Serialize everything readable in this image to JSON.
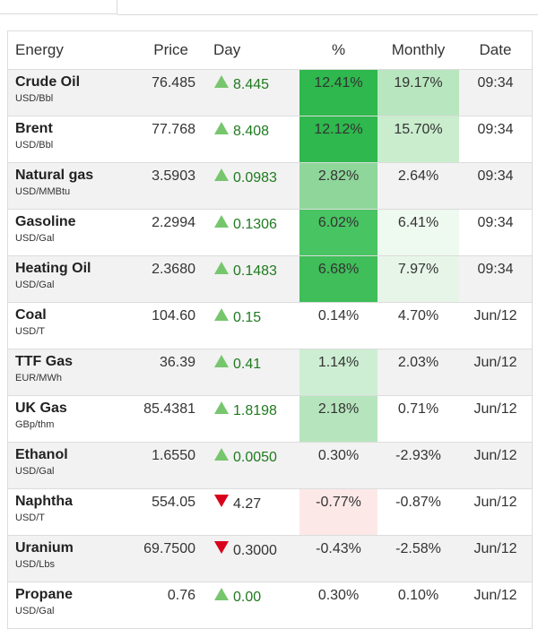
{
  "colors": {
    "up_arrow": "#77c66e",
    "down_arrow": "#d9001b",
    "up_text": "#1f7a1f"
  },
  "header": {
    "name": "Energy",
    "price": "Price",
    "day": "Day",
    "pct": "%",
    "monthly": "Monthly",
    "date": "Date"
  },
  "rows": [
    {
      "name": "Crude Oil",
      "unit": "USD/Bbl",
      "price": "76.485",
      "day": "8.445",
      "dir": "up",
      "pct": "12.41%",
      "pct_bg": "#2eb84d",
      "monthly": "19.17%",
      "monthly_bg": "#b8e6be",
      "date": "09:34"
    },
    {
      "name": "Brent",
      "unit": "USD/Bbl",
      "price": "77.768",
      "day": "8.408",
      "dir": "up",
      "pct": "12.12%",
      "pct_bg": "#2eb84d",
      "monthly": "15.70%",
      "monthly_bg": "#c9edcd",
      "date": "09:34"
    },
    {
      "name": "Natural gas",
      "unit": "USD/MMBtu",
      "price": "3.5903",
      "day": "0.0983",
      "dir": "up",
      "pct": "2.82%",
      "pct_bg": "#8fd69b",
      "monthly": "2.64%",
      "monthly_bg": "",
      "date": "09:34"
    },
    {
      "name": "Gasoline",
      "unit": "USD/Gal",
      "price": "2.2994",
      "day": "0.1306",
      "dir": "up",
      "pct": "6.02%",
      "pct_bg": "#49c462",
      "monthly": "6.41%",
      "monthly_bg": "#eef9ef",
      "date": "09:34"
    },
    {
      "name": "Heating Oil",
      "unit": "USD/Gal",
      "price": "2.3680",
      "day": "0.1483",
      "dir": "up",
      "pct": "6.68%",
      "pct_bg": "#3fbe59",
      "monthly": "7.97%",
      "monthly_bg": "#e6f5e8",
      "date": "09:34"
    },
    {
      "name": "Coal",
      "unit": "USD/T",
      "price": "104.60",
      "day": "0.15",
      "dir": "up",
      "pct": "0.14%",
      "pct_bg": "",
      "monthly": "4.70%",
      "monthly_bg": "",
      "date": "Jun/12"
    },
    {
      "name": "TTF Gas",
      "unit": "EUR/MWh",
      "price": "36.39",
      "day": "0.41",
      "dir": "up",
      "pct": "1.14%",
      "pct_bg": "#cdeed2",
      "monthly": "2.03%",
      "monthly_bg": "",
      "date": "Jun/12"
    },
    {
      "name": "UK Gas",
      "unit": "GBp/thm",
      "price": "85.4381",
      "day": "1.8198",
      "dir": "up",
      "pct": "2.18%",
      "pct_bg": "#b6e5bd",
      "monthly": "0.71%",
      "monthly_bg": "",
      "date": "Jun/12"
    },
    {
      "name": "Ethanol",
      "unit": "USD/Gal",
      "price": "1.6550",
      "day": "0.0050",
      "dir": "up",
      "pct": "0.30%",
      "pct_bg": "",
      "monthly": "-2.93%",
      "monthly_bg": "",
      "date": "Jun/12"
    },
    {
      "name": "Naphtha",
      "unit": "USD/T",
      "price": "554.05",
      "day": "4.27",
      "dir": "down",
      "pct": "-0.77%",
      "pct_bg": "#fde8e8",
      "monthly": "-0.87%",
      "monthly_bg": "",
      "date": "Jun/12"
    },
    {
      "name": "Uranium",
      "unit": "USD/Lbs",
      "price": "69.7500",
      "day": "0.3000",
      "dir": "down",
      "pct": "-0.43%",
      "pct_bg": "",
      "monthly": "-2.58%",
      "monthly_bg": "",
      "date": "Jun/12"
    },
    {
      "name": "Propane",
      "unit": "USD/Gal",
      "price": "0.76",
      "day": "0.00",
      "dir": "up",
      "pct": "0.30%",
      "pct_bg": "",
      "monthly": "0.10%",
      "monthly_bg": "",
      "date": "Jun/12"
    }
  ]
}
